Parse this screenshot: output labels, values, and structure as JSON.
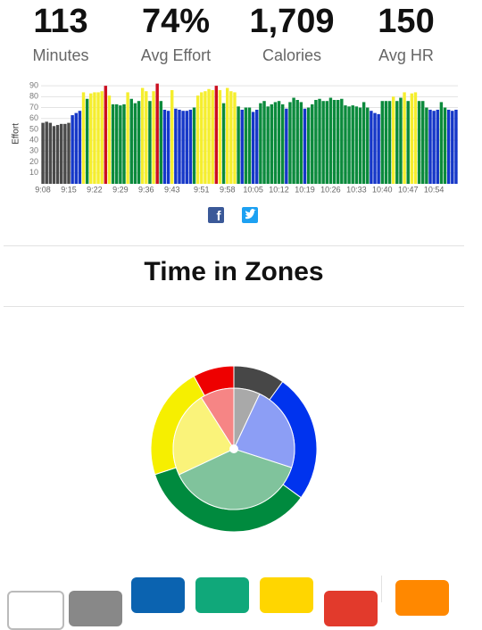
{
  "stats": [
    {
      "value": "113",
      "label": "Minutes"
    },
    {
      "value": "74%",
      "label": "Avg Effort"
    },
    {
      "value": "1,709",
      "label": "Calories"
    },
    {
      "value": "150",
      "label": "Avg HR"
    }
  ],
  "section_title": "Time in Zones",
  "chart_data": [
    {
      "type": "bar",
      "y_label": "Effort",
      "ylim": [
        0,
        95
      ],
      "yticks": [
        10,
        20,
        30,
        40,
        50,
        60,
        70,
        80,
        90
      ],
      "grid": true,
      "categories": [
        "9:08",
        null,
        null,
        null,
        null,
        null,
        null,
        "9:15",
        null,
        null,
        null,
        null,
        null,
        null,
        "9:22",
        null,
        null,
        null,
        null,
        null,
        null,
        "9:29",
        null,
        null,
        null,
        null,
        null,
        null,
        "9:36",
        null,
        null,
        null,
        null,
        null,
        null,
        "9:43",
        null,
        null,
        null,
        null,
        null,
        null,
        null,
        "9:51",
        null,
        null,
        null,
        null,
        null,
        null,
        "9:58",
        null,
        null,
        null,
        null,
        null,
        null,
        "10:05",
        null,
        null,
        null,
        null,
        null,
        null,
        "10:12",
        null,
        null,
        null,
        null,
        null,
        null,
        "10:19",
        null,
        null,
        null,
        null,
        null,
        null,
        "10:26",
        null,
        null,
        null,
        null,
        null,
        null,
        "10:33",
        null,
        null,
        null,
        null,
        null,
        null,
        "10:40",
        null,
        null,
        null,
        null,
        null,
        null,
        "10:47",
        null,
        null,
        null,
        null,
        null,
        null,
        "10:54",
        null,
        null,
        null,
        null,
        null,
        null
      ],
      "values": [
        56,
        57,
        56,
        53,
        54,
        55,
        55,
        56,
        63,
        65,
        67,
        84,
        78,
        83,
        84,
        84,
        85,
        90,
        81,
        73,
        73,
        72,
        73,
        84,
        78,
        74,
        76,
        88,
        85,
        76,
        85,
        92,
        76,
        68,
        67,
        86,
        69,
        68,
        67,
        67,
        68,
        70,
        81,
        84,
        85,
        87,
        86,
        90,
        86,
        74,
        88,
        85,
        84,
        71,
        68,
        70,
        70,
        66,
        68,
        74,
        76,
        71,
        73,
        75,
        76,
        73,
        69,
        75,
        79,
        77,
        75,
        69,
        70,
        73,
        77,
        78,
        76,
        76,
        79,
        77,
        77,
        78,
        72,
        71,
        72,
        71,
        70,
        75,
        70,
        67,
        65,
        64,
        76,
        76,
        76,
        80,
        76,
        79,
        84,
        76,
        83,
        84,
        76,
        76,
        70,
        68,
        67,
        68,
        75,
        70,
        68,
        67,
        68
      ],
      "colors": [
        "#4a4a4a",
        "#4a4a4a",
        "#4a4a4a",
        "#4a4a4a",
        "#4a4a4a",
        "#4a4a4a",
        "#4a4a4a",
        "#4a4a4a",
        "#1537c8",
        "#1537c8",
        "#1537c8",
        "#f5ee2e",
        "#0b8a3c",
        "#f5ee2e",
        "#f5ee2e",
        "#f5ee2e",
        "#f5ee2e",
        "#cc1020",
        "#f5ee2e",
        "#0b8a3c",
        "#0b8a3c",
        "#0b8a3c",
        "#0b8a3c",
        "#f5ee2e",
        "#0b8a3c",
        "#0b8a3c",
        "#0b8a3c",
        "#f5ee2e",
        "#f5ee2e",
        "#0b8a3c",
        "#f5ee2e",
        "#cc1020",
        "#0b8a3c",
        "#1537c8",
        "#1537c8",
        "#f5ee2e",
        "#1537c8",
        "#1537c8",
        "#1537c8",
        "#1537c8",
        "#1537c8",
        "#0b8a3c",
        "#f5ee2e",
        "#f5ee2e",
        "#f5ee2e",
        "#f5ee2e",
        "#f5ee2e",
        "#cc1020",
        "#f5ee2e",
        "#0b8a3c",
        "#f5ee2e",
        "#f5ee2e",
        "#f5ee2e",
        "#0b8a3c",
        "#1537c8",
        "#0b8a3c",
        "#0b8a3c",
        "#1537c8",
        "#1537c8",
        "#0b8a3c",
        "#0b8a3c",
        "#0b8a3c",
        "#0b8a3c",
        "#0b8a3c",
        "#0b8a3c",
        "#0b8a3c",
        "#1537c8",
        "#0b8a3c",
        "#0b8a3c",
        "#0b8a3c",
        "#0b8a3c",
        "#1537c8",
        "#0b8a3c",
        "#0b8a3c",
        "#0b8a3c",
        "#0b8a3c",
        "#0b8a3c",
        "#0b8a3c",
        "#0b8a3c",
        "#0b8a3c",
        "#0b8a3c",
        "#0b8a3c",
        "#0b8a3c",
        "#0b8a3c",
        "#0b8a3c",
        "#0b8a3c",
        "#0b8a3c",
        "#0b8a3c",
        "#0b8a3c",
        "#1537c8",
        "#1537c8",
        "#1537c8",
        "#0b8a3c",
        "#0b8a3c",
        "#0b8a3c",
        "#f5ee2e",
        "#0b8a3c",
        "#0b8a3c",
        "#f5ee2e",
        "#0b8a3c",
        "#f5ee2e",
        "#f5ee2e",
        "#0b8a3c",
        "#0b8a3c",
        "#0b8a3c",
        "#1537c8",
        "#1537c8",
        "#1537c8",
        "#0b8a3c",
        "#0b8a3c",
        "#1537c8",
        "#1537c8",
        "#1537c8"
      ]
    },
    {
      "type": "pie",
      "series": [
        {
          "values": [
            10,
            25,
            35,
            22,
            8
          ],
          "colors": [
            "#474747",
            "#0033ee",
            "#008a3e",
            "#f6ef00",
            "#ee0000"
          ]
        },
        {
          "values": [
            7,
            23,
            38,
            23,
            9
          ],
          "colors": [
            "#a9a9a9",
            "#8c9ef5",
            "#80c39c",
            "#faf37a",
            "#f68585"
          ]
        }
      ]
    }
  ]
}
